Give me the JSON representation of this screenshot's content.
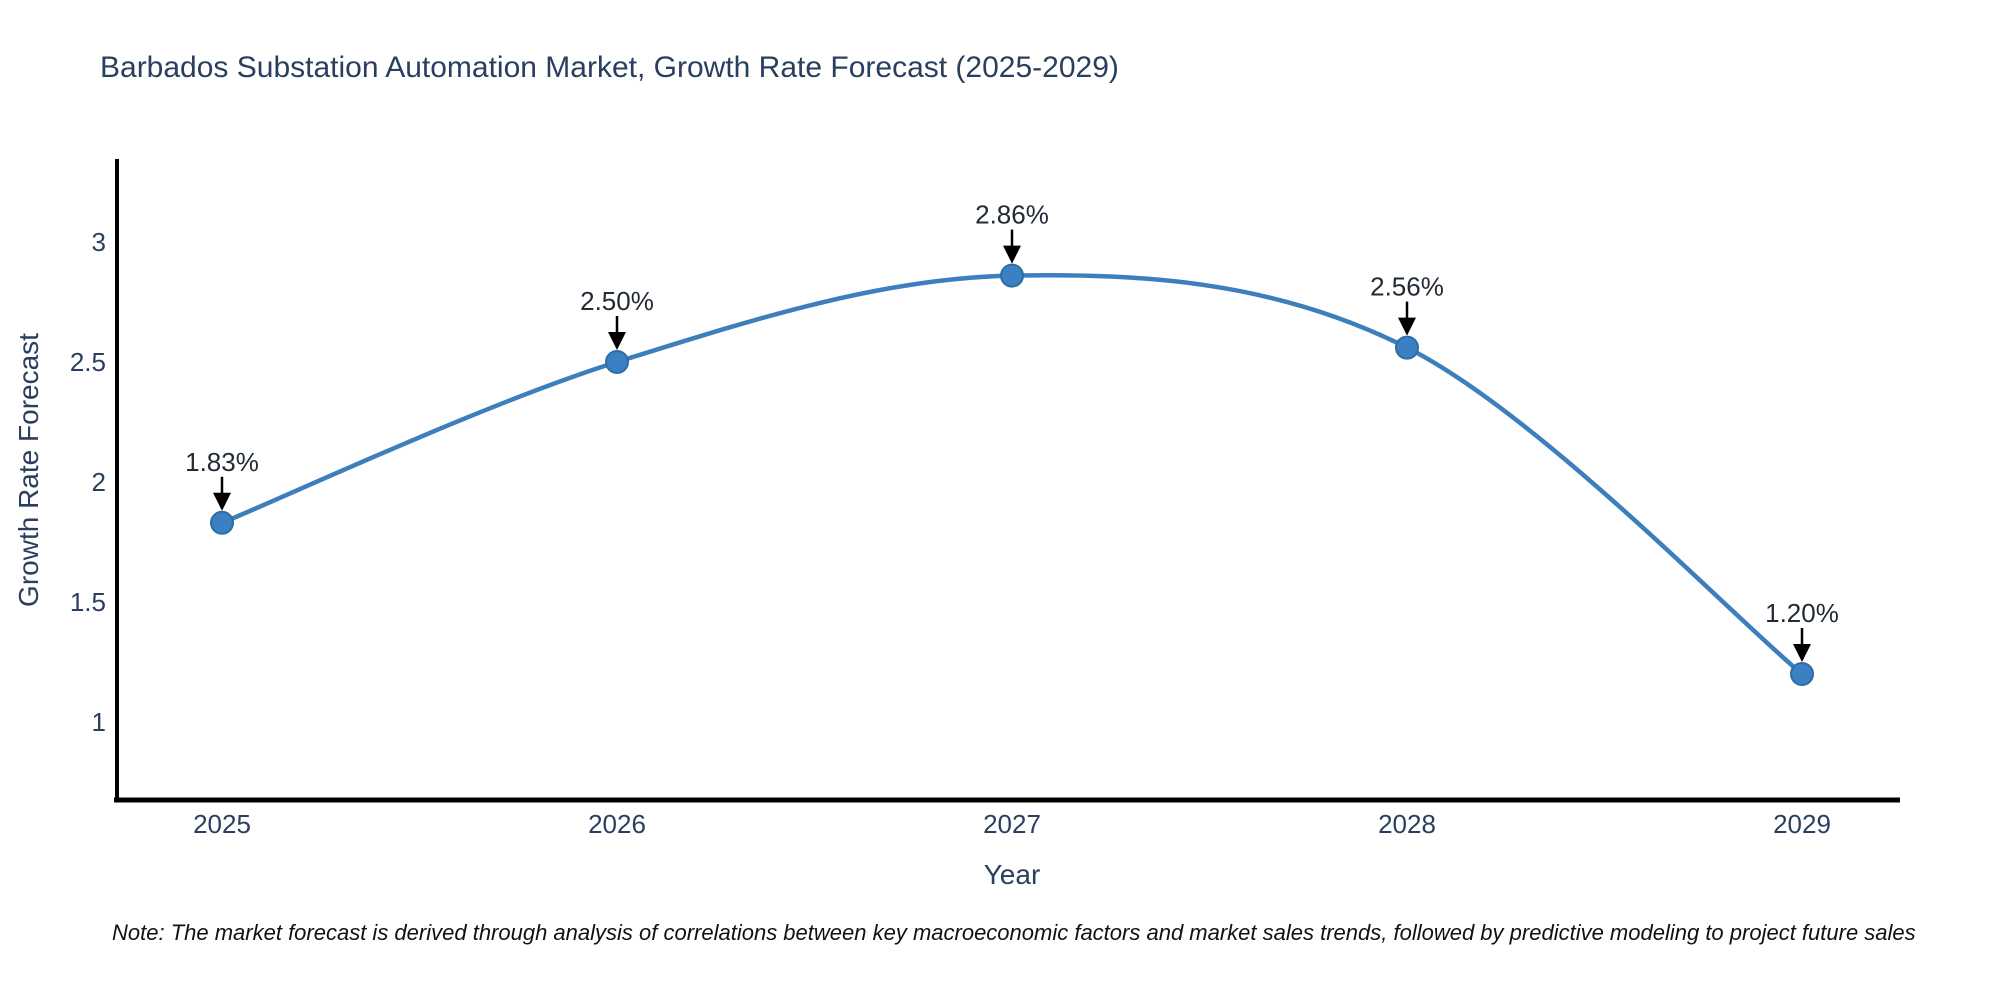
{
  "title": "Barbados Substation Automation Market, Growth Rate Forecast (2025-2029)",
  "note": "Note: The market forecast is derived through analysis of correlations between key macroeconomic factors and market sales trends, followed by predictive modeling to project future sales",
  "chart_data": {
    "type": "line",
    "title": "Barbados Substation Automation Market, Growth Rate Forecast (2025-2029)",
    "xlabel": "Year",
    "ylabel": "Growth Rate Forecast",
    "x": [
      2025,
      2026,
      2027,
      2028,
      2029
    ],
    "series": [
      {
        "name": "Growth Rate Forecast",
        "values": [
          1.83,
          2.5,
          2.86,
          2.56,
          1.2
        ]
      }
    ],
    "point_labels": [
      "1.83%",
      "2.50%",
      "2.86%",
      "2.56%",
      "1.20%"
    ],
    "yticks": [
      1,
      1.5,
      2,
      2.5,
      3
    ],
    "ylim": [
      0.675,
      3.35
    ],
    "grid": false,
    "legend_position": "none",
    "line_shape": "spline",
    "colors": {
      "line": "#3d7ebd",
      "marker_fill": "#3b80c2",
      "marker_edge": "#2e6da4",
      "axis": "#000000",
      "tick_text": "#2a3f5f",
      "annotation_arrow": "#000000"
    }
  }
}
